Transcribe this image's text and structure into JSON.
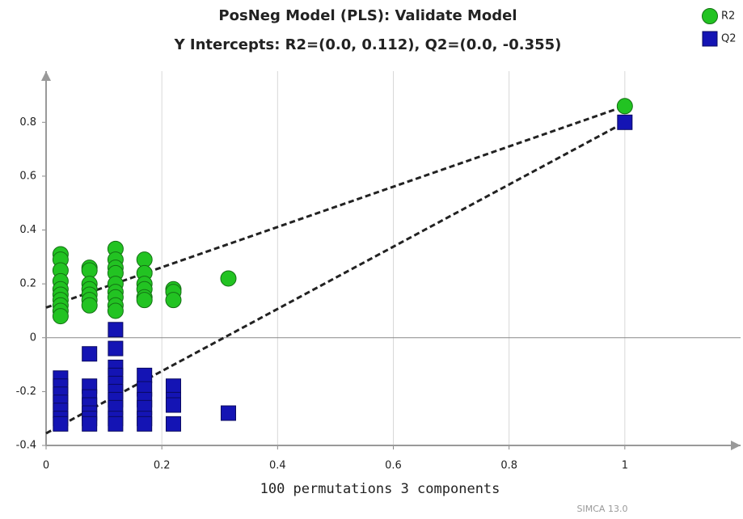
{
  "chart_data": {
    "type": "scatter",
    "title": "PosNeg Model (PLS): Validate Model",
    "subtitle": "Y Intercepts: R2=(0.0, 0.112), Q2=(0.0, -0.355)",
    "x_label": "100 permutations 3 components",
    "watermark": "SIMCA 13.0",
    "xlim": [
      0,
      1.2
    ],
    "ylim": [
      -0.4,
      0.99
    ],
    "xticks": [
      0,
      0.2,
      0.4,
      0.6,
      0.8,
      1
    ],
    "yticks": [
      -0.4,
      -0.2,
      0,
      0.2,
      0.4,
      0.6,
      0.8
    ],
    "grid": "x",
    "zero_line": true,
    "legend": "top-right",
    "series": [
      {
        "name": "R2",
        "color": "#22c322",
        "marker": "circle",
        "x": [
          0.025,
          0.025,
          0.025,
          0.025,
          0.025,
          0.025,
          0.025,
          0.025,
          0.025,
          0.025,
          0.075,
          0.075,
          0.075,
          0.075,
          0.075,
          0.075,
          0.075,
          0.12,
          0.12,
          0.12,
          0.12,
          0.12,
          0.12,
          0.12,
          0.12,
          0.12,
          0.17,
          0.17,
          0.17,
          0.17,
          0.17,
          0.17,
          0.22,
          0.22,
          0.22,
          0.315,
          1
        ],
        "values": [
          0.31,
          0.29,
          0.25,
          0.21,
          0.18,
          0.16,
          0.14,
          0.12,
          0.1,
          0.08,
          0.26,
          0.25,
          0.2,
          0.18,
          0.16,
          0.14,
          0.12,
          0.33,
          0.29,
          0.26,
          0.24,
          0.2,
          0.17,
          0.15,
          0.12,
          0.1,
          0.29,
          0.24,
          0.2,
          0.18,
          0.15,
          0.14,
          0.18,
          0.17,
          0.14,
          0.22,
          0.86
        ]
      },
      {
        "name": "Q2",
        "color": "#1414b4",
        "marker": "square",
        "x": [
          0.025,
          0.025,
          0.025,
          0.025,
          0.025,
          0.025,
          0.025,
          0.075,
          0.075,
          0.075,
          0.075,
          0.075,
          0.075,
          0.075,
          0.12,
          0.12,
          0.12,
          0.12,
          0.12,
          0.12,
          0.12,
          0.12,
          0.12,
          0.12,
          0.17,
          0.17,
          0.17,
          0.17,
          0.17,
          0.17,
          0.22,
          0.22,
          0.22,
          0.22,
          0.315,
          1
        ],
        "values": [
          -0.15,
          -0.18,
          -0.21,
          -0.24,
          -0.27,
          -0.3,
          -0.32,
          -0.06,
          -0.18,
          -0.22,
          -0.25,
          -0.28,
          -0.3,
          -0.32,
          0.03,
          -0.04,
          -0.11,
          -0.14,
          -0.17,
          -0.2,
          -0.23,
          -0.26,
          -0.3,
          -0.32,
          -0.14,
          -0.19,
          -0.23,
          -0.26,
          -0.3,
          -0.32,
          -0.18,
          -0.23,
          -0.25,
          -0.32,
          -0.28,
          0.8
        ]
      }
    ],
    "fit_lines": [
      {
        "x": [
          0,
          1
        ],
        "values": [
          0.112,
          0.86
        ]
      },
      {
        "x": [
          0,
          1
        ],
        "values": [
          -0.355,
          0.8
        ]
      }
    ]
  }
}
